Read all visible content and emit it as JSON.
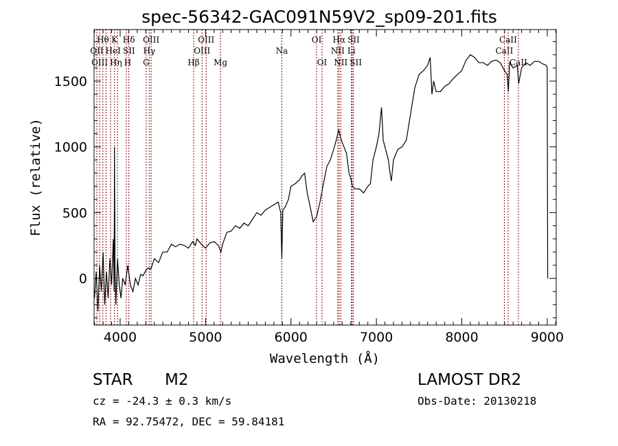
{
  "chart_data": {
    "type": "line",
    "title": "spec-56342-GAC091N59V2_sp09-201.fits",
    "xlabel": "Wavelength (Å)",
    "ylabel": "Flux (relative)",
    "xlim": [
      3695,
      9105
    ],
    "ylim": [
      -355,
      1892
    ],
    "xticks": [
      4000,
      5000,
      6000,
      7000,
      8000,
      9000
    ],
    "xtick_labels": [
      "4000",
      "5000",
      "6000",
      "7000",
      "8000",
      "9000"
    ],
    "yticks": [
      0,
      500,
      1000,
      1500
    ],
    "ytick_labels": [
      "0",
      "500",
      "1000",
      "1500"
    ],
    "grid": false,
    "series": [
      {
        "name": "spectrum",
        "color": "#000000",
        "x": [
          3700,
          3720,
          3740,
          3760,
          3780,
          3800,
          3820,
          3840,
          3860,
          3880,
          3900,
          3920,
          3930,
          3934,
          3940,
          3950,
          3970,
          3990,
          4010,
          4030,
          4060,
          4090,
          4120,
          4150,
          4180,
          4210,
          4240,
          4270,
          4300,
          4330,
          4360,
          4400,
          4450,
          4500,
          4550,
          4600,
          4650,
          4700,
          4750,
          4800,
          4850,
          4880,
          4900,
          4950,
          5000,
          5050,
          5100,
          5150,
          5180,
          5200,
          5250,
          5300,
          5350,
          5400,
          5450,
          5500,
          5550,
          5600,
          5650,
          5700,
          5750,
          5800,
          5850,
          5880,
          5893,
          5905,
          5930,
          5970,
          6000,
          6050,
          6100,
          6130,
          6160,
          6190,
          6220,
          6260,
          6300,
          6340,
          6380,
          6420,
          6460,
          6500,
          6530,
          6560,
          6590,
          6620,
          6650,
          6680,
          6700,
          6720,
          6750,
          6800,
          6850,
          6900,
          6930,
          6960,
          7000,
          7030,
          7060,
          7080,
          7100,
          7120,
          7140,
          7160,
          7175,
          7200,
          7250,
          7300,
          7350,
          7400,
          7450,
          7500,
          7550,
          7600,
          7630,
          7650,
          7670,
          7700,
          7750,
          7800,
          7850,
          7900,
          7950,
          8000,
          8050,
          8100,
          8150,
          8200,
          8250,
          8300,
          8350,
          8400,
          8450,
          8500,
          8530,
          8545,
          8560,
          8600,
          8650,
          8665,
          8700,
          8750,
          8800,
          8850,
          8900,
          8950,
          8990,
          9000,
          9005
        ],
        "y": [
          -150,
          50,
          -250,
          100,
          -100,
          200,
          -200,
          50,
          -150,
          150,
          -50,
          300,
          -100,
          1000,
          100,
          -200,
          150,
          -50,
          -150,
          0,
          -50,
          100,
          -50,
          -100,
          0,
          -50,
          30,
          20,
          60,
          80,
          70,
          150,
          120,
          200,
          200,
          260,
          240,
          260,
          250,
          230,
          280,
          250,
          300,
          260,
          230,
          270,
          280,
          250,
          200,
          260,
          350,
          360,
          400,
          380,
          420,
          400,
          450,
          500,
          480,
          520,
          540,
          560,
          580,
          500,
          150,
          520,
          540,
          600,
          700,
          720,
          750,
          780,
          800,
          650,
          560,
          430,
          470,
          580,
          720,
          850,
          900,
          980,
          1050,
          1130,
          1050,
          1000,
          950,
          800,
          760,
          700,
          680,
          680,
          650,
          700,
          720,
          900,
          1000,
          1100,
          1300,
          1050,
          1000,
          950,
          900,
          800,
          740,
          900,
          980,
          1000,
          1050,
          1250,
          1450,
          1550,
          1580,
          1620,
          1680,
          1400,
          1500,
          1420,
          1420,
          1460,
          1480,
          1520,
          1550,
          1580,
          1660,
          1700,
          1680,
          1640,
          1640,
          1620,
          1650,
          1660,
          1640,
          1580,
          1550,
          1420,
          1640,
          1600,
          1620,
          1480,
          1600,
          1640,
          1620,
          1650,
          1650,
          1630,
          1620,
          1600,
          0
        ]
      }
    ],
    "spectral_lines": [
      {
        "label": "OII",
        "wave": 3727,
        "tier": 2
      },
      {
        "label": "Hθ",
        "wave": 3798,
        "tier": 1
      },
      {
        "label": "OIII",
        "wave": 3760,
        "tier": 3
      },
      {
        "label": "Hη",
        "wave": 3835,
        "tier": 3
      },
      {
        "label": "HeI",
        "wave": 3889,
        "tier": 2
      },
      {
        "label": "K",
        "wave": 3934,
        "tier": 1
      },
      {
        "label": "H",
        "wave": 3969,
        "tier": 3
      },
      {
        "label": "SII",
        "wave": 4072,
        "tier": 2
      },
      {
        "label": "Hδ",
        "wave": 4102,
        "tier": 1
      },
      {
        "label": "G",
        "wave": 4305,
        "tier": 3
      },
      {
        "label": "Hγ",
        "wave": 4341,
        "tier": 2
      },
      {
        "label": "OIII",
        "wave": 4363,
        "tier": 1
      },
      {
        "label": "Hβ",
        "wave": 4861,
        "tier": 3
      },
      {
        "label": "OIII",
        "wave": 4959,
        "tier": 2
      },
      {
        "label": "OIII",
        "wave": 5007,
        "tier": 1
      },
      {
        "label": "Mg",
        "wave": 5175,
        "tier": 3
      },
      {
        "label": "Na",
        "wave": 5893,
        "tier": 2
      },
      {
        "label": "OI",
        "wave": 6300,
        "tier": 1
      },
      {
        "label": "OI",
        "wave": 6364,
        "tier": 3
      },
      {
        "label": "NII",
        "wave": 6548,
        "tier": 2
      },
      {
        "label": "Hα",
        "wave": 6563,
        "tier": 1
      },
      {
        "label": "NII",
        "wave": 6583,
        "tier": 3
      },
      {
        "label": "Li",
        "wave": 6708,
        "tier": 2
      },
      {
        "label": "SII",
        "wave": 6716,
        "tier": 1
      },
      {
        "label": "SII",
        "wave": 6731,
        "tier": 3
      },
      {
        "label": "CaII",
        "wave": 8498,
        "tier": 2
      },
      {
        "label": "CaII",
        "wave": 8542,
        "tier": 1
      },
      {
        "label": "CaII",
        "wave": 8662,
        "tier": 3
      }
    ],
    "line_color": "#8b0000"
  },
  "info": {
    "class": "STAR",
    "subclass": "M2",
    "redshift": "cz = -24.3 ± 0.3 km/s",
    "coords": "RA =  92.75472, DEC =  59.84181",
    "survey": "LAMOST DR2",
    "obs_date": "Obs-Date: 20130218"
  }
}
